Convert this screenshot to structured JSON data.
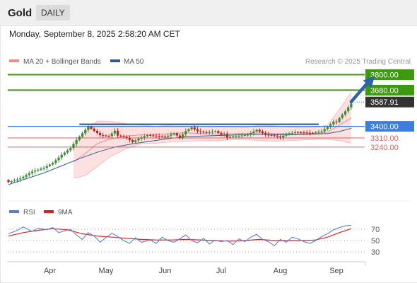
{
  "header": {
    "instrument": "Gold",
    "timeframe": "DAILY"
  },
  "timestamp": "Monday, September 8, 2025 2:58:20 AM CET",
  "legend": {
    "ma20_bb": {
      "label": "MA 20 + Bollinger Bands",
      "color": "#f08a8a"
    },
    "ma50": {
      "label": "MA 50",
      "color": "#2d5a9a"
    }
  },
  "credit": "Research © 2025 Trading Central",
  "colors": {
    "up": "#3a8a3a",
    "down": "#b82424",
    "band": "#fde0e0",
    "target": "#3b9a0e",
    "pivot": "#3e7ce0",
    "support": "#e06060",
    "last": "#333333",
    "arrow": "#2d63a8",
    "rsi": "#5a7fd6",
    "rsi_ma": "#dd2222"
  },
  "chart_data": [
    {
      "type": "candlestick",
      "title": "",
      "xlabel": "",
      "ylabel": "",
      "x_range": [
        0,
        125
      ],
      "ylim": [
        2900,
        3830
      ],
      "month_labels": [
        {
          "label": "Apr",
          "x": 14
        },
        {
          "label": "May",
          "x": 33
        },
        {
          "label": "Jun",
          "x": 53
        },
        {
          "label": "Jul",
          "x": 72
        },
        {
          "label": "Aug",
          "x": 92
        },
        {
          "label": "Sep",
          "x": 111
        }
      ],
      "levels": [
        {
          "label": "3800.00",
          "value": 3800,
          "kind": "target"
        },
        {
          "label": "3680.00",
          "value": 3680,
          "kind": "target"
        },
        {
          "label": "3587.91",
          "value": 3588,
          "kind": "last"
        },
        {
          "label": "3400.00",
          "value": 3400,
          "kind": "pivot"
        },
        {
          "label": "3310.00",
          "value": 3310,
          "kind": "support"
        },
        {
          "label": "3240.00",
          "value": 3240,
          "kind": "support"
        }
      ],
      "resistance_line": {
        "value": 3400,
        "x": [
          24,
          105
        ]
      },
      "scenario_arrow": {
        "x": [
          116,
          124
        ],
        "y": [
          3590,
          3790
        ]
      },
      "close_path": [
        [
          0,
          2985
        ],
        [
          4,
          3010
        ],
        [
          8,
          3060
        ],
        [
          12,
          3085
        ],
        [
          15,
          3120
        ],
        [
          18,
          3180
        ],
        [
          21,
          3230
        ],
        [
          23,
          3290
        ],
        [
          25,
          3340
        ],
        [
          27,
          3390
        ],
        [
          29,
          3355
        ],
        [
          31,
          3320
        ],
        [
          34,
          3310
        ],
        [
          36,
          3350
        ],
        [
          38,
          3340
        ],
        [
          40,
          3325
        ],
        [
          42,
          3290
        ],
        [
          44,
          3315
        ],
        [
          47,
          3340
        ],
        [
          50,
          3330
        ],
        [
          53,
          3320
        ],
        [
          56,
          3345
        ],
        [
          58,
          3310
        ],
        [
          60,
          3360
        ],
        [
          62,
          3385
        ],
        [
          64,
          3355
        ],
        [
          67,
          3340
        ],
        [
          70,
          3350
        ],
        [
          72,
          3320
        ],
        [
          75,
          3335
        ],
        [
          78,
          3340
        ],
        [
          81,
          3345
        ],
        [
          84,
          3380
        ],
        [
          87,
          3340
        ],
        [
          90,
          3330
        ],
        [
          92,
          3315
        ],
        [
          94,
          3340
        ],
        [
          97,
          3350
        ],
        [
          100,
          3345
        ],
        [
          103,
          3338
        ],
        [
          106,
          3350
        ],
        [
          108,
          3380
        ],
        [
          110,
          3420
        ],
        [
          112,
          3480
        ],
        [
          114,
          3530
        ],
        [
          116,
          3588
        ]
      ],
      "bb_upper": [
        [
          22,
          3250
        ],
        [
          26,
          3360
        ],
        [
          30,
          3440
        ],
        [
          34,
          3440
        ],
        [
          40,
          3420
        ],
        [
          45,
          3410
        ],
        [
          50,
          3400
        ],
        [
          55,
          3410
        ],
        [
          60,
          3420
        ],
        [
          65,
          3400
        ],
        [
          70,
          3395
        ],
        [
          75,
          3395
        ],
        [
          80,
          3390
        ],
        [
          85,
          3410
        ],
        [
          90,
          3405
        ],
        [
          95,
          3395
        ],
        [
          100,
          3390
        ],
        [
          105,
          3395
        ],
        [
          108,
          3410
        ],
        [
          112,
          3530
        ],
        [
          116,
          3660
        ]
      ],
      "bb_lower": [
        [
          22,
          3000
        ],
        [
          26,
          3020
        ],
        [
          30,
          3090
        ],
        [
          34,
          3160
        ],
        [
          40,
          3230
        ],
        [
          45,
          3265
        ],
        [
          50,
          3270
        ],
        [
          55,
          3280
        ],
        [
          60,
          3285
        ],
        [
          65,
          3290
        ],
        [
          70,
          3290
        ],
        [
          75,
          3295
        ],
        [
          80,
          3300
        ],
        [
          85,
          3290
        ],
        [
          90,
          3285
        ],
        [
          95,
          3290
        ],
        [
          100,
          3295
        ],
        [
          105,
          3300
        ],
        [
          108,
          3300
        ],
        [
          112,
          3290
        ],
        [
          116,
          3270
        ]
      ],
      "ma20": [
        [
          22,
          3125
        ],
        [
          26,
          3190
        ],
        [
          30,
          3265
        ],
        [
          34,
          3300
        ],
        [
          40,
          3325
        ],
        [
          45,
          3335
        ],
        [
          50,
          3335
        ],
        [
          55,
          3345
        ],
        [
          60,
          3350
        ],
        [
          65,
          3345
        ],
        [
          70,
          3342
        ],
        [
          75,
          3342
        ],
        [
          80,
          3345
        ],
        [
          85,
          3350
        ],
        [
          90,
          3345
        ],
        [
          95,
          3342
        ],
        [
          100,
          3342
        ],
        [
          105,
          3348
        ],
        [
          108,
          3355
        ],
        [
          112,
          3410
        ],
        [
          116,
          3465
        ]
      ],
      "ma50": [
        [
          0,
          2950
        ],
        [
          6,
          2995
        ],
        [
          12,
          3040
        ],
        [
          18,
          3095
        ],
        [
          24,
          3150
        ],
        [
          30,
          3200
        ],
        [
          36,
          3240
        ],
        [
          42,
          3265
        ],
        [
          48,
          3285
        ],
        [
          54,
          3305
        ],
        [
          60,
          3320
        ],
        [
          66,
          3325
        ],
        [
          72,
          3330
        ],
        [
          78,
          3335
        ],
        [
          84,
          3338
        ],
        [
          90,
          3335
        ],
        [
          96,
          3335
        ],
        [
          102,
          3340
        ],
        [
          108,
          3345
        ],
        [
          112,
          3360
        ],
        [
          116,
          3385
        ]
      ]
    },
    {
      "type": "line",
      "title": "",
      "legend": [
        {
          "name": "RSI",
          "color": "#5a7fd6"
        },
        {
          "name": "9MA",
          "color": "#dd2222"
        }
      ],
      "ylim": [
        20,
        85
      ],
      "yticks": [
        70,
        50,
        30
      ],
      "series": [
        {
          "name": "RSI",
          "points": [
            [
              0,
              62
            ],
            [
              3,
              68
            ],
            [
              5,
              74
            ],
            [
              8,
              66
            ],
            [
              10,
              72
            ],
            [
              13,
              69
            ],
            [
              15,
              73
            ],
            [
              17,
              64
            ],
            [
              19,
              67
            ],
            [
              21,
              70
            ],
            [
              23,
              60
            ],
            [
              25,
              52
            ],
            [
              27,
              64
            ],
            [
              29,
              58
            ],
            [
              31,
              47
            ],
            [
              33,
              55
            ],
            [
              35,
              63
            ],
            [
              37,
              57
            ],
            [
              39,
              50
            ],
            [
              41,
              45
            ],
            [
              43,
              55
            ],
            [
              45,
              47
            ],
            [
              48,
              51
            ],
            [
              50,
              45
            ],
            [
              52,
              56
            ],
            [
              54,
              50
            ],
            [
              56,
              47
            ],
            [
              58,
              53
            ],
            [
              60,
              60
            ],
            [
              62,
              50
            ],
            [
              64,
              46
            ],
            [
              66,
              54
            ],
            [
              68,
              44
            ],
            [
              70,
              51
            ],
            [
              72,
              48
            ],
            [
              74,
              50
            ],
            [
              76,
              43
            ],
            [
              78,
              53
            ],
            [
              80,
              48
            ],
            [
              82,
              56
            ],
            [
              84,
              61
            ],
            [
              86,
              52
            ],
            [
              88,
              48
            ],
            [
              90,
              41
            ],
            [
              92,
              52
            ],
            [
              94,
              47
            ],
            [
              96,
              56
            ],
            [
              98,
              53
            ],
            [
              100,
              48
            ],
            [
              102,
              45
            ],
            [
              104,
              50
            ],
            [
              106,
              57
            ],
            [
              108,
              62
            ],
            [
              110,
              69
            ],
            [
              112,
              73
            ],
            [
              114,
              76
            ],
            [
              116,
              77
            ]
          ]
        },
        {
          "name": "9MA",
          "points": [
            [
              0,
              58
            ],
            [
              5,
              64
            ],
            [
              10,
              68
            ],
            [
              15,
              71
            ],
            [
              20,
              69
            ],
            [
              25,
              62
            ],
            [
              30,
              58
            ],
            [
              35,
              56
            ],
            [
              40,
              54
            ],
            [
              45,
              52
            ],
            [
              50,
              51
            ],
            [
              55,
              51
            ],
            [
              60,
              52
            ],
            [
              65,
              51
            ],
            [
              70,
              50
            ],
            [
              75,
              49
            ],
            [
              80,
              50
            ],
            [
              85,
              52
            ],
            [
              90,
              50
            ],
            [
              95,
              50
            ],
            [
              100,
              50
            ],
            [
              104,
              51
            ],
            [
              108,
              56
            ],
            [
              112,
              64
            ],
            [
              116,
              71
            ]
          ]
        }
      ]
    }
  ]
}
